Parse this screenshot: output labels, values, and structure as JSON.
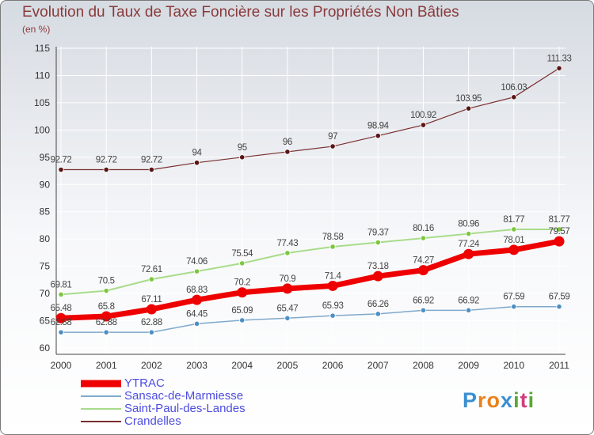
{
  "title": "Evolution du Taux de Taxe Foncière sur les Propriétés Non Bâties",
  "unit": "(en %)",
  "logo": {
    "letters": [
      "P",
      "r",
      "o",
      "x",
      "i",
      "t",
      "i"
    ],
    "colors": [
      "#3a8fd0",
      "#e8821e",
      "#e8821e",
      "#3a8fd0",
      "#5aa832",
      "#d23d7c",
      "#5aa832"
    ]
  },
  "chart_data": {
    "type": "line",
    "x": [
      "2000",
      "2001",
      "2002",
      "2003",
      "2004",
      "2005",
      "2006",
      "2007",
      "2008",
      "2009",
      "2010",
      "2011"
    ],
    "ylim": [
      60,
      115
    ],
    "yticks": [
      60,
      65,
      70,
      75,
      80,
      85,
      90,
      95,
      100,
      105,
      110,
      115
    ],
    "grid": true,
    "legend_position": "bottom-left",
    "series": [
      {
        "name": "Crandelles",
        "color": "#7a2e2e",
        "dot": "#5a1515",
        "width": 1.2,
        "values": [
          92.72,
          92.72,
          92.72,
          94,
          95,
          96,
          97,
          98.94,
          100.92,
          103.95,
          106.03,
          111.33
        ],
        "labels": [
          "92.72",
          "92.72",
          "92.72",
          "94",
          "95",
          "96",
          "97",
          "98.94",
          "100.92",
          "103.95",
          "106.03",
          "111.33"
        ]
      },
      {
        "name": "Saint-Paul-des-Landes",
        "color": "#a8dc8a",
        "dot": "#7cc73e",
        "width": 2,
        "values": [
          69.81,
          70.5,
          72.61,
          74.06,
          75.54,
          77.43,
          78.58,
          79.37,
          80.16,
          80.96,
          81.77,
          81.77
        ],
        "labels": [
          "69.81",
          "70.5",
          "72.61",
          "74.06",
          "75.54",
          "77.43",
          "78.58",
          "79.37",
          "80.16",
          "80.96",
          "81.77",
          "81.77"
        ]
      },
      {
        "name": "Sansac-de-Marmiesse",
        "color": "#7fa9cc",
        "dot": "#4d8fc4",
        "width": 1.5,
        "values": [
          62.88,
          62.88,
          62.88,
          64.45,
          65.09,
          65.47,
          65.93,
          66.26,
          66.92,
          66.92,
          67.59,
          67.59
        ],
        "labels": [
          "62.88",
          "62.88",
          "62.88",
          "64.45",
          "65.09",
          "65.47",
          "65.93",
          "66.26",
          "66.92",
          "66.92",
          "67.59",
          "67.59"
        ]
      },
      {
        "name": "YTRAC",
        "color": "#ee0000",
        "dot": "#ee0000",
        "width": 7,
        "values": [
          65.48,
          65.8,
          67.11,
          68.83,
          70.2,
          70.9,
          71.4,
          73.18,
          74.27,
          77.24,
          78.01,
          79.57
        ],
        "labels": [
          "65.48",
          "65.8",
          "67.11",
          "68.83",
          "70.2",
          "70.9",
          "71.4",
          "73.18",
          "74.27",
          "77.24",
          "78.01",
          "79.57"
        ]
      }
    ]
  },
  "legend": [
    {
      "name": "YTRAC",
      "color": "#ee0000"
    },
    {
      "name": "Sansac-de-Marmiesse",
      "color": "#7fa9cc"
    },
    {
      "name": "Saint-Paul-des-Landes",
      "color": "#a8dc8a"
    },
    {
      "name": "Crandelles",
      "color": "#7a2e2e"
    }
  ]
}
